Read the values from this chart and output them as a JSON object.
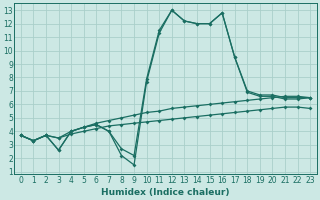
{
  "xlabel": "Humidex (Indice chaleur)",
  "xlim": [
    -0.5,
    23.5
  ],
  "ylim": [
    0.8,
    13.5
  ],
  "xticks": [
    0,
    1,
    2,
    3,
    4,
    5,
    6,
    7,
    8,
    9,
    10,
    11,
    12,
    13,
    14,
    15,
    16,
    17,
    18,
    19,
    20,
    21,
    22,
    23
  ],
  "yticks": [
    1,
    2,
    3,
    4,
    5,
    6,
    7,
    8,
    9,
    10,
    11,
    12,
    13
  ],
  "bg_color": "#cce8e4",
  "grid_color": "#aacfca",
  "line_color": "#1a6e62",
  "line1_x": [
    0,
    1,
    2,
    3,
    4,
    5,
    6,
    7,
    8,
    9,
    10,
    11,
    12,
    13,
    14,
    15,
    16,
    17,
    18,
    19,
    20,
    21,
    22,
    23
  ],
  "line1_y": [
    3.7,
    3.3,
    3.7,
    2.6,
    4.0,
    4.3,
    4.5,
    4.0,
    2.2,
    1.5,
    7.7,
    11.3,
    13.0,
    12.2,
    12.0,
    12.0,
    12.8,
    9.5,
    6.9,
    6.6,
    6.6,
    6.4,
    6.4,
    6.5
  ],
  "line2_x": [
    0,
    1,
    2,
    3,
    4,
    5,
    6,
    7,
    8,
    9,
    10,
    11,
    12,
    13,
    14,
    15,
    16,
    17,
    18,
    19,
    20,
    21,
    22,
    23
  ],
  "line2_y": [
    3.7,
    3.3,
    3.7,
    2.6,
    4.0,
    4.3,
    4.5,
    4.0,
    2.7,
    2.2,
    7.9,
    11.5,
    13.0,
    12.2,
    12.0,
    12.0,
    12.8,
    9.5,
    7.0,
    6.7,
    6.7,
    6.5,
    6.5,
    6.5
  ],
  "line3_x": [
    0,
    1,
    2,
    3,
    4,
    5,
    6,
    7,
    8,
    9,
    10,
    11,
    12,
    13,
    14,
    15,
    16,
    17,
    18,
    19,
    20,
    21,
    22,
    23
  ],
  "line3_y": [
    3.7,
    3.3,
    3.7,
    3.5,
    4.0,
    4.3,
    4.6,
    4.8,
    5.0,
    5.2,
    5.4,
    5.5,
    5.7,
    5.8,
    5.9,
    6.0,
    6.1,
    6.2,
    6.3,
    6.4,
    6.5,
    6.6,
    6.6,
    6.5
  ],
  "line4_x": [
    0,
    1,
    2,
    3,
    4,
    5,
    6,
    7,
    8,
    9,
    10,
    11,
    12,
    13,
    14,
    15,
    16,
    17,
    18,
    19,
    20,
    21,
    22,
    23
  ],
  "line4_y": [
    3.7,
    3.3,
    3.7,
    3.5,
    3.8,
    4.0,
    4.2,
    4.4,
    4.5,
    4.6,
    4.7,
    4.8,
    4.9,
    5.0,
    5.1,
    5.2,
    5.3,
    5.4,
    5.5,
    5.6,
    5.7,
    5.8,
    5.8,
    5.7
  ]
}
